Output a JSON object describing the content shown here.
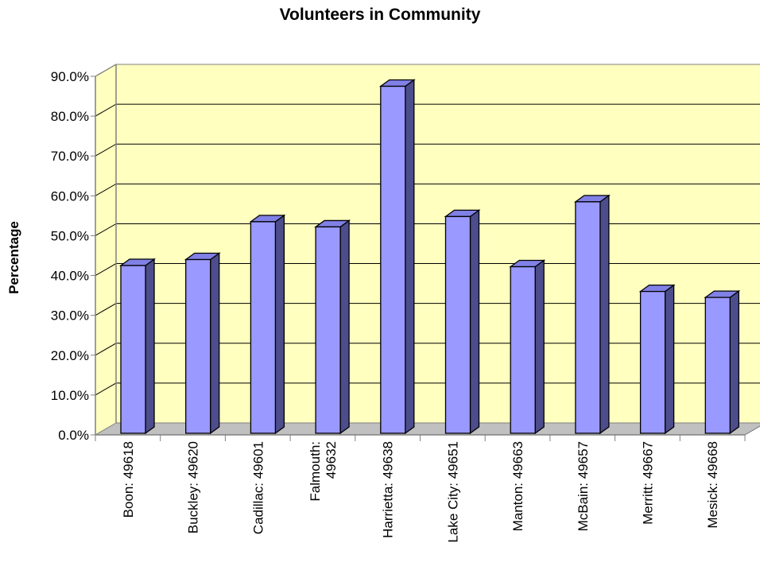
{
  "chart_data": {
    "type": "bar",
    "title": "Volunteers in Community",
    "xlabel": "",
    "ylabel": "Percentage",
    "categories": [
      [
        "Boon: 49618"
      ],
      [
        "Buckley: 49620"
      ],
      [
        "Cadillac: 49601"
      ],
      [
        "Falmouth:",
        "49632"
      ],
      [
        "Harrietta: 49638"
      ],
      [
        "Lake City: 49651"
      ],
      [
        "Manton: 49663"
      ],
      [
        "McBain: 49657"
      ],
      [
        "Merritt: 49667"
      ],
      [
        "Mesick: 49668"
      ]
    ],
    "series": [
      {
        "values": [
          42.5,
          44.0,
          53.5,
          52.2,
          87.5,
          54.8,
          42.2,
          58.5,
          36.0,
          34.5
        ]
      }
    ],
    "yticks": [
      "0.0%",
      "10.0%",
      "20.0%",
      "30.0%",
      "40.0%",
      "50.0%",
      "60.0%",
      "70.0%",
      "80.0%",
      "90.0%"
    ],
    "ylim": [
      0,
      90
    ],
    "grid": true,
    "three_d": true,
    "colors": {
      "wall": "#ffffc0",
      "floor": "#c0c0c0",
      "bar_front": "#9999ff",
      "bar_top": "#8080e6",
      "bar_side": "#4d4d8c",
      "outline": "#000000",
      "axis": "#808080"
    }
  }
}
